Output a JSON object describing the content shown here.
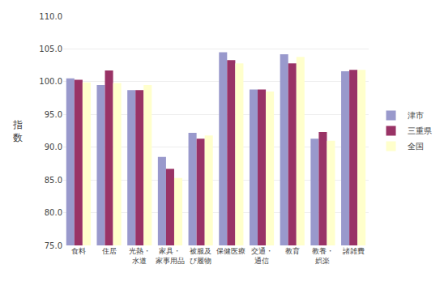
{
  "chart_data": {
    "type": "bar",
    "categories": [
      "食料",
      "住居",
      "光熱・\n水道",
      "家具・\n家事用品",
      "被服及\nび履物",
      "保健医療",
      "交通・\n通信",
      "教育",
      "教養・\n娯楽",
      "諸雑費"
    ],
    "series": [
      {
        "name": "津市",
        "color": "#9999cc",
        "values": [
          100.5,
          99.5,
          98.7,
          88.5,
          92.2,
          104.5,
          98.8,
          104.2,
          91.3,
          101.6
        ]
      },
      {
        "name": "三重県",
        "color": "#993366",
        "values": [
          100.3,
          101.7,
          98.7,
          86.7,
          91.3,
          103.3,
          98.8,
          102.8,
          92.3,
          101.8
        ]
      },
      {
        "name": "全国",
        "color": "#ffffcc",
        "values": [
          99.9,
          99.8,
          99.5,
          85.3,
          91.8,
          102.8,
          98.5,
          103.8,
          91.0,
          101.8
        ]
      }
    ],
    "ylabel": "指\n数",
    "ylim": [
      75.0,
      110.0
    ],
    "yticks": [
      {
        "value": 75,
        "label": "75.0"
      },
      {
        "value": 80,
        "label": "80.0"
      },
      {
        "value": 85,
        "label": "85.0"
      },
      {
        "value": 90,
        "label": "90.0"
      },
      {
        "value": 95,
        "label": "95.0"
      },
      {
        "value": 100,
        "label": "100.0"
      },
      {
        "value": 105,
        "label": "105.0"
      },
      {
        "value": 110,
        "label": "110.0"
      }
    ],
    "grid": true,
    "legend": "right"
  }
}
